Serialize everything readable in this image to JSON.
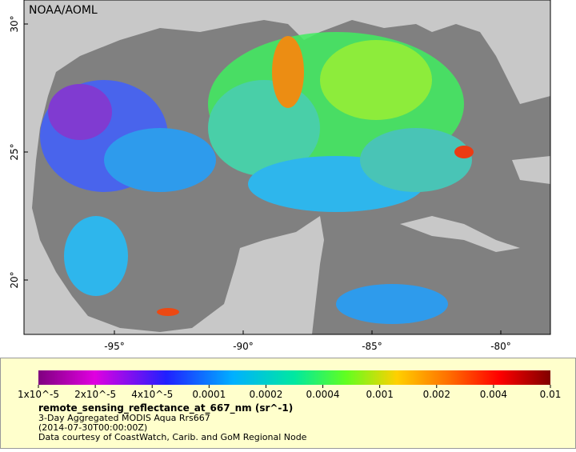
{
  "map": {
    "credit": "NOAA/AOML",
    "lat_labels": [
      "30°",
      "25°",
      "20°"
    ],
    "lon_labels": [
      "-95°",
      "-90°",
      "-85°",
      "-80°"
    ]
  },
  "legend": {
    "ticks": [
      "1x10^-5",
      "2x10^-5",
      "4x10^-5",
      "0.0001",
      "0.0002",
      "0.0004",
      "0.001",
      "0.002",
      "0.004",
      "0.01"
    ],
    "variable": "remote_sensing_reflectance_at_667_nm (sr^-1)",
    "lines": [
      "3-Day Aggregated MODIS Aqua Rrs667",
      "(2014-07-30T00:00:00Z)",
      "Data courtesy of CoastWatch, Carib. and GoM Regional Node"
    ]
  }
}
